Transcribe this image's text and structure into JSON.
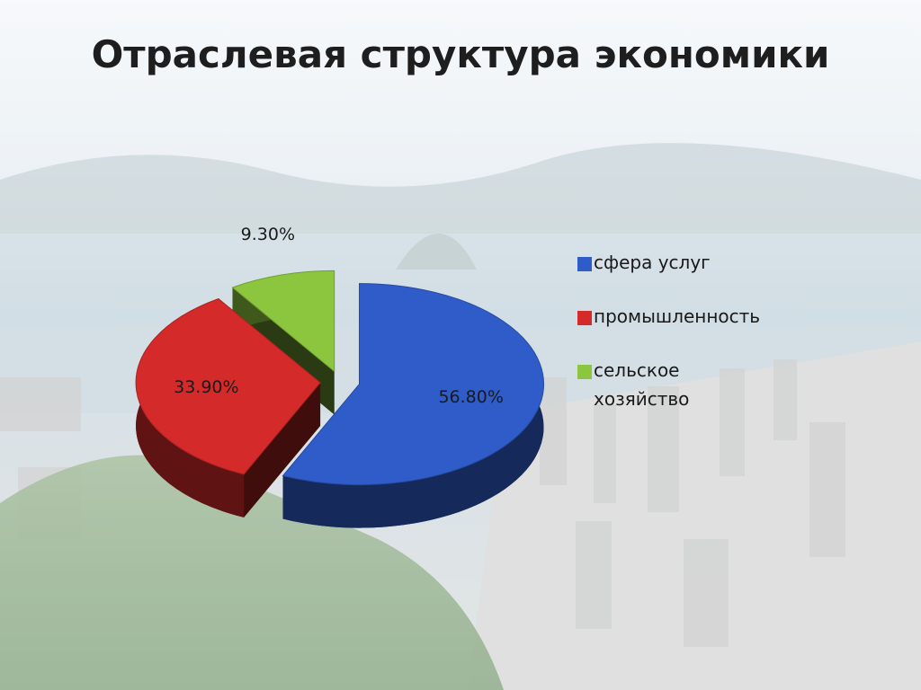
{
  "chart_data": {
    "type": "pie",
    "title": "Отраслевая структура экономики",
    "categories": [
      "сфера услуг",
      "промышленность",
      "сельское хозяйство"
    ],
    "values": [
      56.8,
      33.9,
      9.3
    ],
    "value_labels": [
      "56.80%",
      "33.90%",
      "9.30%"
    ],
    "colors": [
      "#2f5cc8",
      "#d42a2a",
      "#8cc63f"
    ],
    "legend": "right"
  }
}
